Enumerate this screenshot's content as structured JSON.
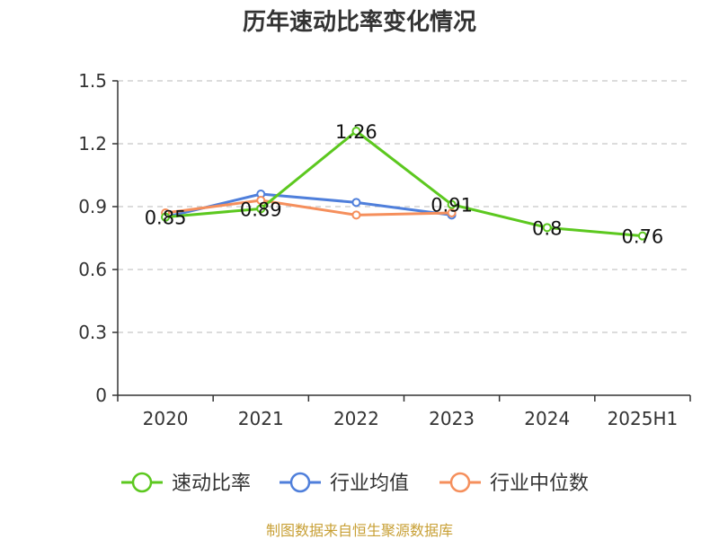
{
  "chart_data": {
    "type": "line",
    "title": "历年速动比率变化情况",
    "categories": [
      "2020",
      "2021",
      "2022",
      "2023",
      "2024",
      "2025H1"
    ],
    "ylim": [
      0,
      1.5
    ],
    "yticks": [
      "0",
      "0.3",
      "0.6",
      "0.9",
      "1.2",
      "1.5"
    ],
    "grid": true,
    "legend_position": "bottom",
    "series": [
      {
        "name": "速动比率",
        "color": "#5cc81f",
        "values": [
          0.85,
          0.89,
          1.26,
          0.91,
          0.8,
          0.76
        ],
        "labels": [
          "0.85",
          "0.89",
          "1.26",
          "0.91",
          "0.8",
          "0.76"
        ]
      },
      {
        "name": "行业均值",
        "color": "#4f7fdb",
        "values": [
          0.85,
          0.96,
          0.92,
          0.86,
          null,
          null
        ]
      },
      {
        "name": "行业中位数",
        "color": "#f58f5c",
        "values": [
          0.87,
          0.93,
          0.86,
          0.87,
          null,
          null
        ]
      }
    ],
    "source": "制图数据来自恒生聚源数据库"
  }
}
